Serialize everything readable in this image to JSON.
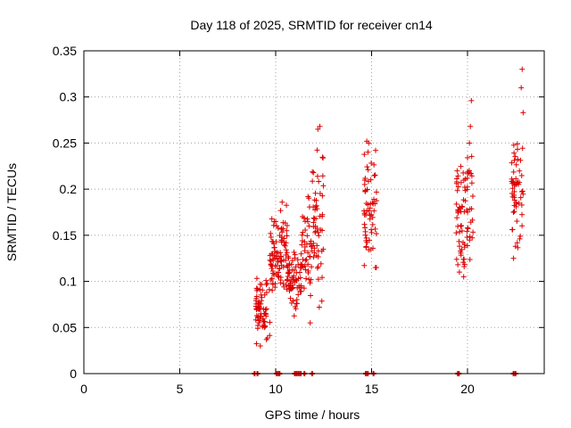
{
  "chart_data": {
    "type": "scatter",
    "title": "Day 118 of 2025, SRMTID for receiver cn14",
    "xlabel": "GPS time / hours",
    "ylabel": "SRMTID / TECUs",
    "xlim": [
      0,
      24
    ],
    "ylim": [
      0,
      0.35
    ],
    "xticks": [
      0,
      5,
      10,
      15,
      20
    ],
    "xtick_labels": [
      "0",
      "5",
      "10",
      "15",
      "20"
    ],
    "yticks": [
      0,
      0.05,
      0.1,
      0.15,
      0.2,
      0.25,
      0.3,
      0.35
    ],
    "ytick_labels": [
      "0",
      "0.05",
      "0.1",
      "0.15",
      "0.2",
      "0.25",
      "0.3",
      "0.35"
    ],
    "grid": true,
    "marker": "plus",
    "color": "#dd0000",
    "zero_points_x": [
      8.9,
      9.05,
      10.05,
      10.15,
      10.2,
      11.0,
      11.1,
      11.2,
      11.3,
      11.5,
      11.9,
      14.7,
      14.8,
      15.1,
      19.5,
      19.55,
      22.4,
      22.5
    ],
    "clusters": [
      {
        "x": [
          8.95,
          9.7
        ],
        "y": [
          0.03,
          0.11
        ],
        "n": 70,
        "seed": 11
      },
      {
        "x": [
          9.7,
          10.2
        ],
        "y": [
          0.07,
          0.17
        ],
        "n": 50,
        "seed": 12
      },
      {
        "x": [
          10.2,
          10.6
        ],
        "y": [
          0.08,
          0.19
        ],
        "n": 45,
        "seed": 13
      },
      {
        "x": [
          10.6,
          11.4
        ],
        "y": [
          0.06,
          0.14
        ],
        "n": 70,
        "seed": 14
      },
      {
        "x": [
          11.3,
          11.8
        ],
        "y": [
          0.08,
          0.2
        ],
        "n": 40,
        "seed": 15
      },
      {
        "x": [
          11.8,
          12.5
        ],
        "y": [
          0.06,
          0.27
        ],
        "n": 60,
        "seed": 16
      },
      {
        "x": [
          14.6,
          15.3
        ],
        "y": [
          0.11,
          0.25
        ],
        "n": 60,
        "seed": 17
      },
      {
        "x": [
          19.4,
          20.3
        ],
        "y": [
          0.1,
          0.25
        ],
        "n": 80,
        "seed": 18
      },
      {
        "x": [
          22.3,
          22.9
        ],
        "y": [
          0.12,
          0.27
        ],
        "n": 55,
        "seed": 19
      }
    ],
    "points": [
      [
        9.2,
        0.03
      ],
      [
        10.0,
        0.165
      ],
      [
        10.05,
        0.16
      ],
      [
        11.8,
        0.055
      ],
      [
        12.2,
        0.265
      ],
      [
        12.3,
        0.268
      ],
      [
        14.75,
        0.252
      ],
      [
        14.85,
        0.25
      ],
      [
        15.2,
        0.115
      ],
      [
        15.25,
        0.115
      ],
      [
        19.8,
        0.105
      ],
      [
        20.1,
        0.25
      ],
      [
        20.15,
        0.268
      ],
      [
        20.2,
        0.296
      ],
      [
        22.85,
        0.33
      ],
      [
        22.8,
        0.31
      ],
      [
        22.9,
        0.283
      ],
      [
        22.4,
        0.125
      ],
      [
        22.5,
        0.138
      ]
    ]
  }
}
